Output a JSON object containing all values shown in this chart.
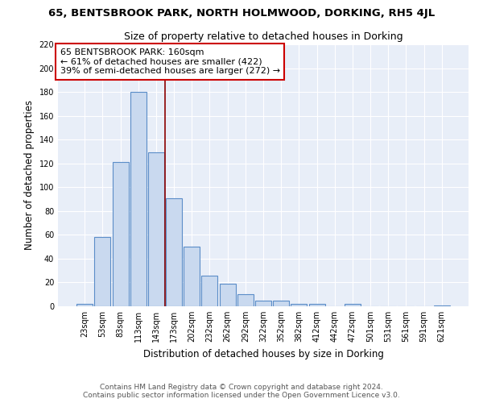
{
  "title": "65, BENTSBROOK PARK, NORTH HOLMWOOD, DORKING, RH5 4JL",
  "subtitle": "Size of property relative to detached houses in Dorking",
  "xlabel": "Distribution of detached houses by size in Dorking",
  "ylabel": "Number of detached properties",
  "bar_labels": [
    "23sqm",
    "53sqm",
    "83sqm",
    "113sqm",
    "143sqm",
    "173sqm",
    "202sqm",
    "232sqm",
    "262sqm",
    "292sqm",
    "322sqm",
    "352sqm",
    "382sqm",
    "412sqm",
    "442sqm",
    "472sqm",
    "501sqm",
    "531sqm",
    "561sqm",
    "591sqm",
    "621sqm"
  ],
  "bar_values": [
    2,
    58,
    121,
    180,
    129,
    91,
    50,
    26,
    19,
    10,
    5,
    5,
    2,
    2,
    0,
    2,
    0,
    0,
    0,
    0,
    1
  ],
  "bar_color": "#c9d9ef",
  "bar_edge_color": "#5b8dc8",
  "vline_x": 4.5,
  "vline_color": "#8b0000",
  "annotation_text": "65 BENTSBROOK PARK: 160sqm\n← 61% of detached houses are smaller (422)\n39% of semi-detached houses are larger (272) →",
  "annotation_box_color": "#ffffff",
  "annotation_box_edge": "#cc0000",
  "ylim": [
    0,
    220
  ],
  "yticks": [
    0,
    20,
    40,
    60,
    80,
    100,
    120,
    140,
    160,
    180,
    200,
    220
  ],
  "footer_line1": "Contains HM Land Registry data © Crown copyright and database right 2024.",
  "footer_line2": "Contains public sector information licensed under the Open Government Licence v3.0.",
  "plot_background": "#e8eef8",
  "title_fontsize": 9.5,
  "subtitle_fontsize": 9,
  "axis_label_fontsize": 8.5,
  "tick_fontsize": 7,
  "annotation_fontsize": 8,
  "footer_fontsize": 6.5
}
